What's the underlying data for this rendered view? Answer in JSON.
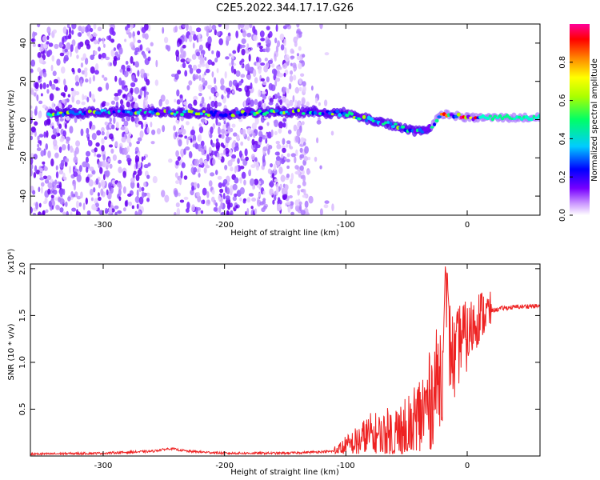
{
  "title": "C2E5.2022.344.17.17.G26",
  "chart_data": [
    {
      "type": "heatmap",
      "xlabel": "Height of straight line (km)",
      "ylabel": "Frequency (Hz)",
      "xlim": [
        -360,
        60
      ],
      "ylim": [
        -50,
        50
      ],
      "xticks": [
        "-300",
        "-200",
        "-100",
        "0"
      ],
      "yticks": [
        "40",
        "20",
        "0",
        "-20",
        "-40"
      ],
      "colorbar": {
        "label": "Normalized spectral amplitude",
        "range": [
          0,
          1
        ],
        "ticks": [
          "0.0",
          "0.2",
          "0.4",
          "0.6",
          "0.8"
        ],
        "colors": [
          "#ffffff",
          "#cc99ff",
          "#7700ff",
          "#0000ff",
          "#00ccff",
          "#00ff66",
          "#aaff00",
          "#ffff00",
          "#ff8800",
          "#ff0000",
          "#ff0099"
        ]
      },
      "trace": {
        "x": [
          -340,
          -300,
          -260,
          -200,
          -160,
          -120,
          -100,
          -80,
          -60,
          -50,
          -40,
          -30,
          -25,
          -20,
          -10,
          0,
          10,
          30,
          60
        ],
        "y": [
          3,
          4,
          4,
          3,
          4,
          4,
          3,
          0,
          -3,
          -5,
          -6,
          -4,
          0,
          3,
          2,
          1,
          1,
          1,
          1
        ]
      }
    },
    {
      "type": "line",
      "xlabel": "Height of straight line (km)",
      "ylabel": "SNR (10 * v/v)",
      "yscale_label": "(x10⁴)",
      "xlim": [
        -360,
        60
      ],
      "ylim": [
        0,
        2.05
      ],
      "xticks": [
        "-300",
        "-200",
        "-100",
        "0"
      ],
      "yticks": [
        "0.5",
        "1.0",
        "1.5",
        "2.0"
      ],
      "color": "#ee2222",
      "series": [
        {
          "x": [
            -360,
            -300,
            -260,
            -245,
            -230,
            -200,
            -150,
            -110,
            -95,
            -80,
            -70,
            -60,
            -50,
            -40,
            -30,
            -25,
            -20,
            -18,
            -15,
            -10,
            -5,
            0,
            5,
            10,
            20,
            30,
            40,
            50,
            60
          ],
          "y": [
            0.02,
            0.03,
            0.05,
            0.08,
            0.05,
            0.03,
            0.03,
            0.05,
            0.12,
            0.22,
            0.18,
            0.2,
            0.25,
            0.4,
            0.6,
            0.8,
            1.0,
            2.05,
            1.2,
            1.0,
            1.3,
            1.25,
            1.4,
            1.5,
            1.55,
            1.58,
            1.59,
            1.6,
            1.6
          ]
        }
      ]
    }
  ]
}
